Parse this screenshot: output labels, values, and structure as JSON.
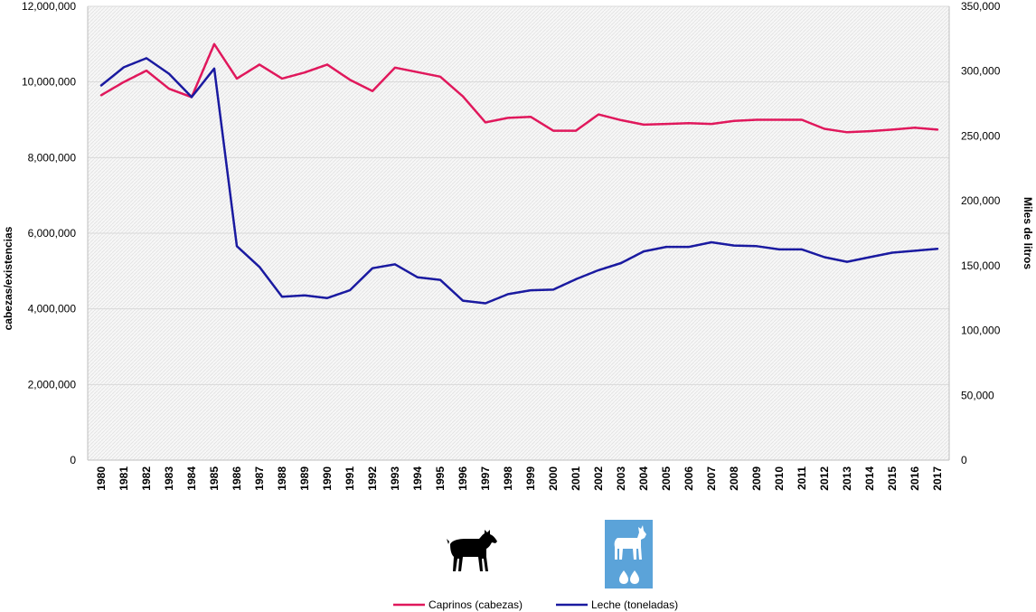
{
  "chart_data": {
    "type": "line",
    "title": "",
    "x": [
      1980,
      1981,
      1982,
      1983,
      1984,
      1985,
      1986,
      1987,
      1988,
      1989,
      1990,
      1991,
      1992,
      1993,
      1994,
      1995,
      1996,
      1997,
      1998,
      1999,
      2000,
      2001,
      2002,
      2003,
      2004,
      2005,
      2006,
      2007,
      2008,
      2009,
      2010,
      2011,
      2012,
      2013,
      2014,
      2015,
      2016,
      2017
    ],
    "x_tick_labels": [
      "1980",
      "1981",
      "1982",
      "1983",
      "1984",
      "1985",
      "1986",
      "1987",
      "1988",
      "1989",
      "1990",
      "1991",
      "1992",
      "1993",
      "1994",
      "1995",
      "1996",
      "1997",
      "1998",
      "1999",
      "2000",
      "2001",
      "2002",
      "2003",
      "2004",
      "2005",
      "2006",
      "2007",
      "2008",
      "2009",
      "2010",
      "2011",
      "2012",
      "2013",
      "2014",
      "2015",
      "2016",
      "2017"
    ],
    "ylabel_left": "cabezas/existencias",
    "ylabel_right": "Miles de litros",
    "ylim_left": [
      0,
      12000000
    ],
    "ylim_right": [
      0,
      350000
    ],
    "left_tick_values": [
      0,
      2000000,
      4000000,
      6000000,
      8000000,
      10000000,
      12000000
    ],
    "left_tick_labels": [
      "0",
      "2,000,000",
      "4,000,000",
      "6,000,000",
      "8,000,000",
      "10,000,000",
      "12,000,000"
    ],
    "right_tick_values": [
      0,
      50000,
      100000,
      150000,
      200000,
      250000,
      300000,
      350000
    ],
    "right_tick_labels": [
      "0",
      "50,000",
      "100,000",
      "150,000",
      "200,000",
      "250,000",
      "300,000",
      "350,000"
    ],
    "grid": true,
    "legend_position": "bottom-center",
    "series": [
      {
        "name": "Caprinos (cabezas)",
        "axis": "left",
        "color": "#e0185c",
        "values": [
          9650000,
          10000000,
          10300000,
          9820000,
          9600000,
          11000000,
          10090000,
          10460000,
          10090000,
          10250000,
          10460000,
          10060000,
          9760000,
          10380000,
          10260000,
          10140000,
          9620000,
          8930000,
          9050000,
          9080000,
          8710000,
          8710000,
          9140000,
          8990000,
          8870000,
          8890000,
          8910000,
          8890000,
          8970000,
          9000000,
          9000000,
          9000000,
          8760000,
          8670000,
          8700000,
          8740000,
          8790000,
          8740000
        ]
      },
      {
        "name": "Leche (toneladas)",
        "axis": "right",
        "color": "#1a1aa0",
        "values": [
          289000,
          303000,
          310000,
          298000,
          280000,
          302000,
          165000,
          149000,
          126000,
          127000,
          125000,
          131000,
          148000,
          151000,
          141000,
          139000,
          123000,
          121000,
          128000,
          131000,
          131500,
          139500,
          146500,
          152000,
          161000,
          164500,
          164500,
          168000,
          165500,
          165000,
          162500,
          162500,
          156500,
          153000,
          156500,
          160000,
          161500,
          163000
        ]
      }
    ],
    "annotations": [
      "goat-silhouette-icon",
      "goat-milk-icon"
    ]
  },
  "colors": {
    "caprinos": "#e0185c",
    "leche": "#1a1aa0",
    "milk_icon_bg": "#5ba3d9",
    "grid": "#d9d9d9"
  }
}
